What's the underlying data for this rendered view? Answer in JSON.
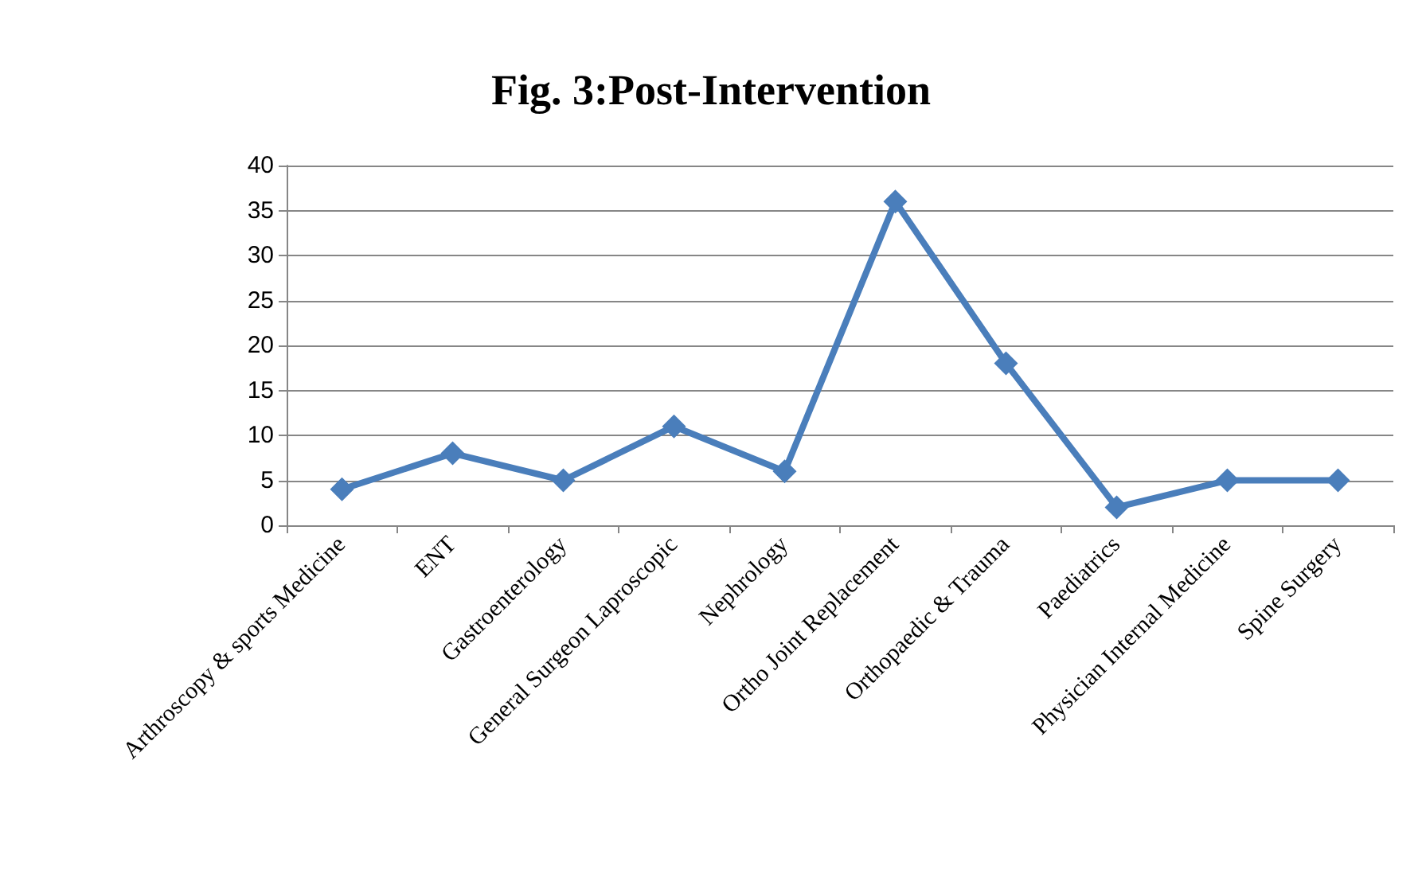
{
  "chart_data": {
    "type": "line",
    "title": "Fig. 3:Post-Intervention",
    "categories": [
      "Arthroscopy & sports Medicine",
      "ENT",
      "Gastroenterology",
      "General Surgeon Laproscopic",
      "Nephrology",
      "Ortho Joint Replacement",
      "Orthopaedic & Trauma",
      "Paediatrics",
      "Physician Internal Medicine",
      "Spine Surgery"
    ],
    "series": [
      {
        "color": "#4a7ebb",
        "values": [
          4,
          8,
          5,
          11,
          6,
          36,
          18,
          2,
          5,
          5
        ]
      }
    ],
    "ylim": [
      0,
      40
    ],
    "yticks": [
      0,
      5,
      10,
      15,
      20,
      25,
      30,
      35,
      40
    ],
    "grid": "y",
    "marker": "diamond",
    "line_style": "solid"
  }
}
